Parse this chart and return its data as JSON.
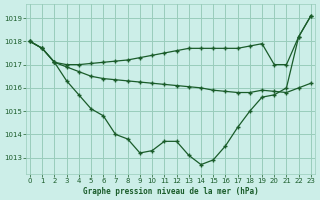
{
  "title": "Graphe pression niveau de la mer (hPa)",
  "bg_color": "#cceee8",
  "grid_color": "#99ccbb",
  "line_color": "#1a5c2a",
  "ylim": [
    1012.3,
    1019.6
  ],
  "yticks": [
    1013,
    1014,
    1015,
    1016,
    1017,
    1018,
    1019
  ],
  "xlim": [
    -0.3,
    23.3
  ],
  "xticks": [
    0,
    1,
    2,
    3,
    4,
    5,
    6,
    7,
    8,
    9,
    10,
    11,
    12,
    13,
    14,
    15,
    16,
    17,
    18,
    19,
    20,
    21,
    22,
    23
  ],
  "line1_y": [
    1018.0,
    1017.7,
    1017.1,
    1017.0,
    1017.0,
    1017.05,
    1017.1,
    1017.15,
    1017.2,
    1017.3,
    1017.4,
    1017.5,
    1017.6,
    1017.7,
    1017.7,
    1017.7,
    1017.7,
    1017.7,
    1017.8,
    1017.9,
    1017.0,
    1017.0,
    1018.2,
    1019.1
  ],
  "line2_y": [
    1018.0,
    1017.7,
    1017.1,
    1016.9,
    1016.7,
    1016.5,
    1016.4,
    1016.35,
    1016.3,
    1016.25,
    1016.2,
    1016.15,
    1016.1,
    1016.05,
    1016.0,
    1015.9,
    1015.85,
    1015.8,
    1015.8,
    1015.9,
    1015.85,
    1015.8,
    1016.0,
    1016.2
  ],
  "line3_y": [
    1018.0,
    1017.7,
    1017.1,
    1016.3,
    1015.7,
    1015.1,
    1014.8,
    1014.0,
    1013.8,
    1013.2,
    1013.3,
    1013.7,
    1013.7,
    1013.1,
    1012.7,
    1012.9,
    1013.5,
    1014.3,
    1015.0,
    1015.6,
    1015.7,
    1016.0,
    1018.2,
    1019.1
  ]
}
